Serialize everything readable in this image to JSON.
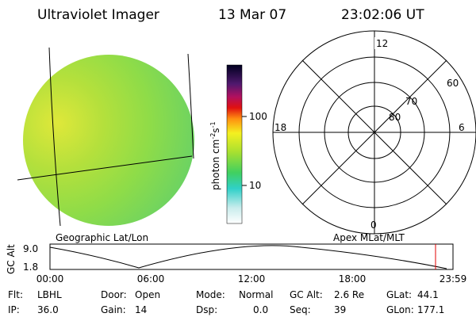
{
  "header": {
    "title": "Ultraviolet Imager",
    "date": "13 Mar 07",
    "time": "23:02:06 UT"
  },
  "colorbar": {
    "label": "photon cm",
    "exp1": "-2",
    "unit2": "s",
    "exp2": "-1",
    "ticks": [
      "100",
      "10"
    ]
  },
  "polar": {
    "mlt": [
      "12",
      "18",
      "6",
      "0"
    ],
    "mlat": [
      "60",
      "70",
      "80"
    ]
  },
  "orbit": {
    "left_label": "Geographic Lat/Lon",
    "right_label": "Apex MLat/MLT",
    "ylabel": "GC Alt",
    "yticks": [
      "9.0",
      "1.8"
    ],
    "xticks": [
      "00:00",
      "06:00",
      "12:00",
      "18:00",
      "23:59"
    ]
  },
  "footer": {
    "rows": [
      [
        [
          "Flt:",
          "LBHL"
        ],
        [
          "Door:",
          "Open"
        ],
        [
          "Mode:",
          "Normal"
        ],
        [
          "GC Alt:",
          "2.6 Re"
        ],
        [
          "GLat:",
          "44.1"
        ]
      ],
      [
        [
          "IP:",
          "36.0"
        ],
        [
          "Gain:",
          "14"
        ],
        [
          "Dsp:",
          "0.0"
        ],
        [
          "Seq:",
          "39"
        ],
        [
          "GLon:",
          "177.1"
        ]
      ]
    ]
  }
}
